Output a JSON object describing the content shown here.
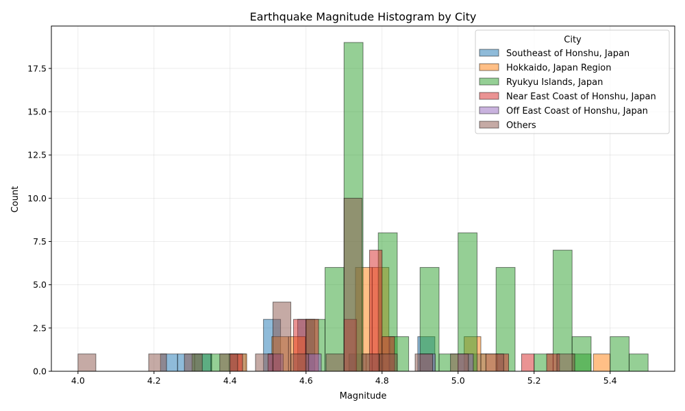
{
  "chart_data": {
    "type": "bar",
    "title": "Earthquake Magnitude Histogram by City",
    "xlabel": "Magnitude",
    "ylabel": "Count",
    "xlim": [
      3.93,
      5.57
    ],
    "ylim": [
      0,
      19.95
    ],
    "xticks": [
      "4.0",
      "4.2",
      "4.4",
      "4.6",
      "4.8",
      "5.0",
      "5.2",
      "5.4"
    ],
    "xtick_values": [
      4.0,
      4.2,
      4.4,
      4.6,
      4.8,
      5.0,
      5.2,
      5.4
    ],
    "yticks": [
      "0.0",
      "2.5",
      "5.0",
      "7.5",
      "10.0",
      "12.5",
      "15.0",
      "17.5"
    ],
    "ytick_values": [
      0,
      2.5,
      5,
      7.5,
      10,
      12.5,
      15,
      17.5
    ],
    "grid": true,
    "legend": {
      "title": "City",
      "placement": "top-right"
    },
    "series": [
      {
        "name": "Southeast of Honshu, Japan",
        "color": "#1f77b4",
        "bars": [
          {
            "x0": 4.217,
            "x1": 4.262,
            "y": 1
          },
          {
            "x0": 4.262,
            "x1": 4.307,
            "y": 1
          },
          {
            "x0": 4.307,
            "x1": 4.352,
            "y": 1
          },
          {
            "x0": 4.397,
            "x1": 4.442,
            "y": 1
          },
          {
            "x0": 4.488,
            "x1": 4.533,
            "y": 3
          },
          {
            "x0": 4.578,
            "x1": 4.623,
            "y": 3
          },
          {
            "x0": 4.713,
            "x1": 4.758,
            "y": 1
          },
          {
            "x0": 4.758,
            "x1": 4.803,
            "y": 1
          },
          {
            "x0": 4.894,
            "x1": 4.939,
            "y": 2
          },
          {
            "x0": 5.029,
            "x1": 5.074,
            "y": 1
          }
        ]
      },
      {
        "name": "Hokkaido, Japan Region",
        "color": "#ff7f0e",
        "bars": [
          {
            "x0": 4.4,
            "x1": 4.444,
            "y": 1
          },
          {
            "x0": 4.51,
            "x1": 4.554,
            "y": 2
          },
          {
            "x0": 4.554,
            "x1": 4.598,
            "y": 2
          },
          {
            "x0": 4.73,
            "x1": 4.774,
            "y": 6
          },
          {
            "x0": 4.774,
            "x1": 4.818,
            "y": 6
          },
          {
            "x0": 5.016,
            "x1": 5.06,
            "y": 2
          },
          {
            "x0": 5.06,
            "x1": 5.104,
            "y": 1
          },
          {
            "x0": 5.356,
            "x1": 5.4,
            "y": 1
          }
        ]
      },
      {
        "name": "Ryukyu Islands, Japan",
        "color": "#2ca02c",
        "bars": [
          {
            "x0": 4.3,
            "x1": 4.35,
            "y": 1
          },
          {
            "x0": 4.35,
            "x1": 4.4,
            "y": 1
          },
          {
            "x0": 4.6,
            "x1": 4.65,
            "y": 3
          },
          {
            "x0": 4.65,
            "x1": 4.7,
            "y": 6
          },
          {
            "x0": 4.7,
            "x1": 4.75,
            "y": 19
          },
          {
            "x0": 4.79,
            "x1": 4.84,
            "y": 8
          },
          {
            "x0": 4.82,
            "x1": 4.87,
            "y": 2
          },
          {
            "x0": 4.9,
            "x1": 4.95,
            "y": 6
          },
          {
            "x0": 4.95,
            "x1": 5.0,
            "y": 1
          },
          {
            "x0": 5.0,
            "x1": 5.05,
            "y": 8
          },
          {
            "x0": 5.1,
            "x1": 5.15,
            "y": 6
          },
          {
            "x0": 5.2,
            "x1": 5.25,
            "y": 1
          },
          {
            "x0": 5.25,
            "x1": 5.3,
            "y": 7
          },
          {
            "x0": 5.3,
            "x1": 5.35,
            "y": 1
          },
          {
            "x0": 5.3,
            "x1": 5.35,
            "y": 2
          },
          {
            "x0": 5.4,
            "x1": 5.45,
            "y": 2
          },
          {
            "x0": 5.45,
            "x1": 5.5,
            "y": 1
          }
        ]
      },
      {
        "name": "Near East Coast of Honshu, Japan",
        "color": "#d62728",
        "bars": [
          {
            "x0": 4.4,
            "x1": 4.433,
            "y": 1
          },
          {
            "x0": 4.5,
            "x1": 4.533,
            "y": 1
          },
          {
            "x0": 4.567,
            "x1": 4.6,
            "y": 3
          },
          {
            "x0": 4.6,
            "x1": 4.633,
            "y": 3
          },
          {
            "x0": 4.7,
            "x1": 4.733,
            "y": 3
          },
          {
            "x0": 4.767,
            "x1": 4.8,
            "y": 7
          },
          {
            "x0": 4.8,
            "x1": 4.833,
            "y": 2
          },
          {
            "x0": 5.1,
            "x1": 5.133,
            "y": 1
          },
          {
            "x0": 5.167,
            "x1": 5.2,
            "y": 1
          },
          {
            "x0": 5.233,
            "x1": 5.267,
            "y": 1
          }
        ]
      },
      {
        "name": "Off East Coast of Honshu, Japan",
        "color": "#9467bd",
        "bars": [
          {
            "x0": 4.5,
            "x1": 4.54,
            "y": 1
          },
          {
            "x0": 4.6,
            "x1": 4.64,
            "y": 1
          },
          {
            "x0": 4.9,
            "x1": 4.94,
            "y": 1
          },
          {
            "x0": 5.0,
            "x1": 5.04,
            "y": 1
          }
        ]
      },
      {
        "name": "Others",
        "color": "#8c564b",
        "bars": [
          {
            "x0": 4.0,
            "x1": 4.047,
            "y": 1
          },
          {
            "x0": 4.186,
            "x1": 4.233,
            "y": 1
          },
          {
            "x0": 4.28,
            "x1": 4.327,
            "y": 1
          },
          {
            "x0": 4.373,
            "x1": 4.42,
            "y": 1
          },
          {
            "x0": 4.467,
            "x1": 4.513,
            "y": 1
          },
          {
            "x0": 4.513,
            "x1": 4.56,
            "y": 4
          },
          {
            "x0": 4.56,
            "x1": 4.607,
            "y": 1
          },
          {
            "x0": 4.653,
            "x1": 4.7,
            "y": 1
          },
          {
            "x0": 4.7,
            "x1": 4.747,
            "y": 10
          },
          {
            "x0": 4.747,
            "x1": 4.793,
            "y": 1
          },
          {
            "x0": 4.793,
            "x1": 4.84,
            "y": 1
          },
          {
            "x0": 4.887,
            "x1": 4.933,
            "y": 1
          },
          {
            "x0": 4.98,
            "x1": 5.027,
            "y": 1
          },
          {
            "x0": 5.073,
            "x1": 5.12,
            "y": 1
          },
          {
            "x0": 5.26,
            "x1": 5.307,
            "y": 1
          }
        ]
      }
    ]
  }
}
